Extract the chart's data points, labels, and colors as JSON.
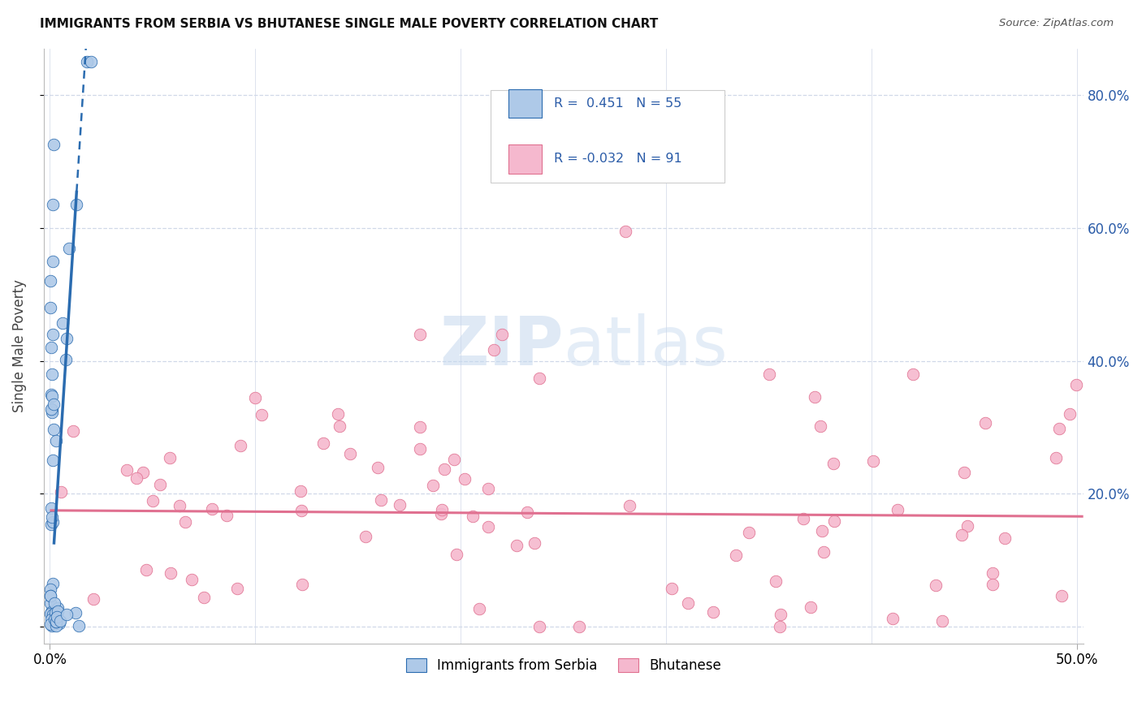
{
  "title": "IMMIGRANTS FROM SERBIA VS BHUTANESE SINGLE MALE POVERTY CORRELATION CHART",
  "source": "Source: ZipAtlas.com",
  "ylabel": "Single Male Poverty",
  "serbia_R": 0.451,
  "serbia_N": 55,
  "bhutan_R": -0.032,
  "bhutan_N": 91,
  "serbia_color": "#aec9e8",
  "bhutan_color": "#f5b8ce",
  "serbia_line_color": "#2b6cb0",
  "bhutan_line_color": "#e07090",
  "legend_text_color": "#2b5ca8",
  "background_color": "#ffffff",
  "grid_color": "#d0d8e8",
  "watermark_color": "#c5d8ee",
  "xlim_min": -0.003,
  "xlim_max": 0.503,
  "ylim_min": -0.025,
  "ylim_max": 0.87
}
